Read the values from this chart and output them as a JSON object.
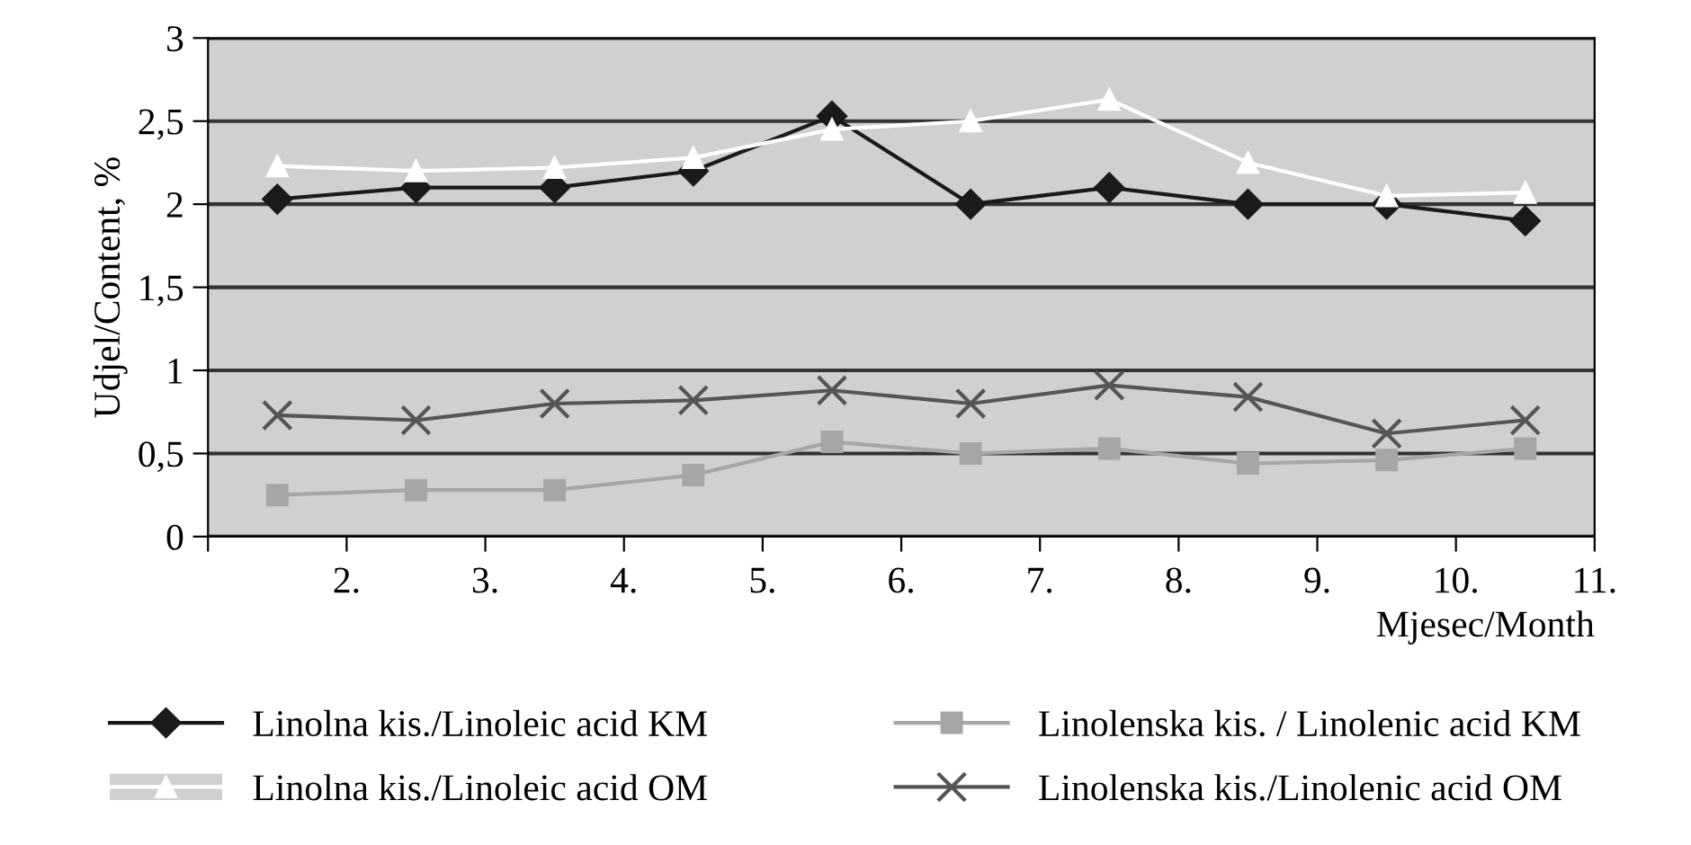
{
  "chart_data": {
    "type": "line",
    "xlabel": "Mjesec/Month",
    "ylabel": "Udjel/Content, %",
    "x": [
      1.5,
      2.5,
      3.5,
      4.5,
      5.5,
      6.5,
      7.5,
      8.5,
      9.5,
      10.5
    ],
    "xlim": [
      1,
      11
    ],
    "xticks": [
      {
        "value": 1,
        "label": null
      },
      {
        "value": 2,
        "label": "2."
      },
      {
        "value": 3,
        "label": "3."
      },
      {
        "value": 4,
        "label": "4."
      },
      {
        "value": 5,
        "label": "5."
      },
      {
        "value": 6,
        "label": "6."
      },
      {
        "value": 7,
        "label": "7."
      },
      {
        "value": 8,
        "label": "8."
      },
      {
        "value": 9,
        "label": "9."
      },
      {
        "value": 10,
        "label": "10."
      },
      {
        "value": 11,
        "label": "11."
      }
    ],
    "ylim": [
      0,
      3
    ],
    "yticks": [
      0,
      {
        "value": 0.5,
        "label": "0,5"
      },
      1,
      {
        "value": 1.5,
        "label": "1,5"
      },
      2,
      {
        "value": 2.5,
        "label": "2,5"
      },
      3
    ],
    "grid": "y",
    "legend": "bottom",
    "series": [
      {
        "name": "Linolna kis./Linoleic acid KM",
        "color": "#1a1a1a",
        "marker": "diamond",
        "values": [
          2.03,
          2.1,
          2.1,
          2.2,
          2.53,
          2.0,
          2.1,
          2.0,
          2.0,
          1.9
        ]
      },
      {
        "name": "Linolenska kis. / Linolenic acid KM",
        "color": "#a6a6a6",
        "marker": "square",
        "values": [
          0.25,
          0.28,
          0.28,
          0.37,
          0.57,
          0.5,
          0.53,
          0.44,
          0.46,
          0.53
        ]
      },
      {
        "name": "Linolna kis./Linoleic acid OM",
        "color": "#ffffff",
        "marker": "triangle",
        "values": [
          2.23,
          2.2,
          2.22,
          2.28,
          2.45,
          2.5,
          2.63,
          2.25,
          2.05,
          2.07
        ]
      },
      {
        "name": "Linolenska kis./Linolenic acid OM",
        "color": "#555555",
        "marker": "cross",
        "values": [
          0.73,
          0.7,
          0.8,
          0.82,
          0.88,
          0.8,
          0.91,
          0.84,
          0.62,
          0.7
        ]
      }
    ]
  }
}
